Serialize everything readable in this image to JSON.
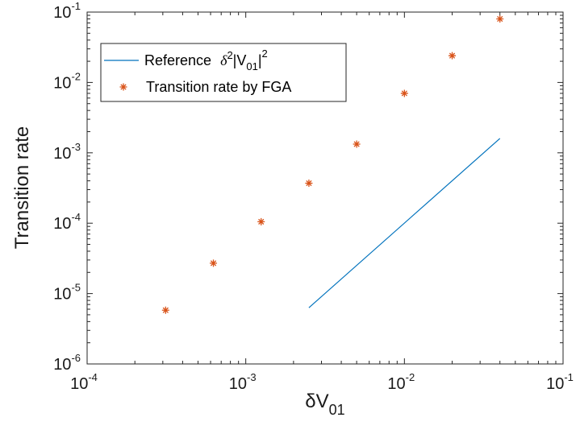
{
  "chart_data": {
    "type": "scatter",
    "x_scale": "log",
    "y_scale": "log",
    "xlim": [
      0.0001,
      0.1
    ],
    "ylim": [
      1e-06,
      0.1
    ],
    "xlabel": {
      "base": "δV",
      "sub": "01"
    },
    "ylabel": "Transition rate",
    "x_ticks": [
      {
        "value": 0.0001,
        "base": "10",
        "exp": "-4"
      },
      {
        "value": 0.001,
        "base": "10",
        "exp": "-3"
      },
      {
        "value": 0.01,
        "base": "10",
        "exp": "-2"
      },
      {
        "value": 0.1,
        "base": "10",
        "exp": "-1"
      }
    ],
    "y_ticks": [
      {
        "value": 1e-06,
        "base": "10",
        "exp": "-6"
      },
      {
        "value": 1e-05,
        "base": "10",
        "exp": "-5"
      },
      {
        "value": 0.0001,
        "base": "10",
        "exp": "-4"
      },
      {
        "value": 0.001,
        "base": "10",
        "exp": "-3"
      },
      {
        "value": 0.01,
        "base": "10",
        "exp": "-2"
      },
      {
        "value": 0.1,
        "base": "10",
        "exp": "-1"
      }
    ],
    "grid": false,
    "legend_position": "top-left",
    "series": [
      {
        "name": "Reference  δ²|V₀₁|²",
        "name_parts": {
          "text": "Reference",
          "delta": "δ",
          "sq": "2",
          "bar": "|V",
          "sub": "01",
          "close": "|",
          "sq2": "2"
        },
        "kind": "line",
        "color": "#0072BD",
        "x": [
          0.0025,
          0.04
        ],
        "y": [
          6.3e-06,
          0.0016
        ]
      },
      {
        "name": "Transition rate by FGA",
        "kind": "marker",
        "marker": "*",
        "color": "#D95319",
        "x": [
          0.0003125,
          0.000625,
          0.00125,
          0.0025,
          0.005,
          0.01,
          0.02,
          0.04
        ],
        "y": [
          5.8e-06,
          2.7e-05,
          0.000105,
          0.00037,
          0.00133,
          0.007,
          0.024,
          0.08
        ]
      }
    ]
  }
}
